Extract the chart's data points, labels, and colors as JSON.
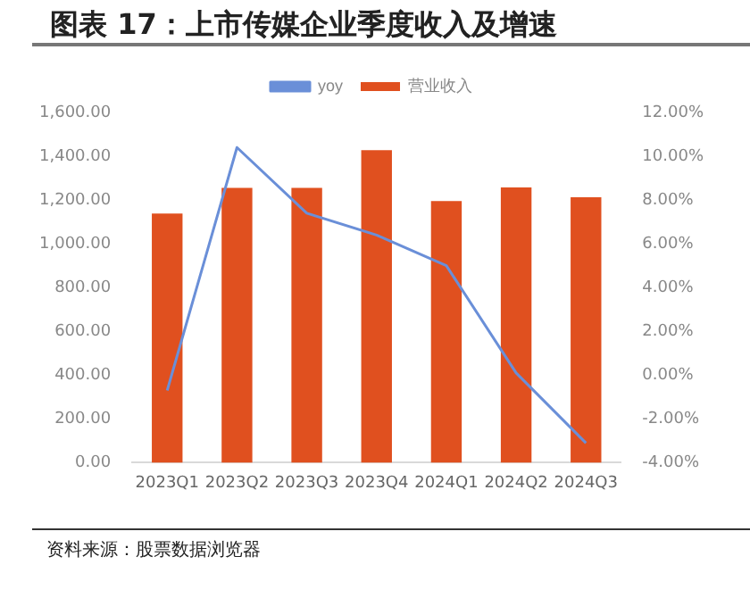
{
  "chart_data": {
    "type": "bar",
    "title": "图表 17：上市传媒企业季度收入及增速",
    "categories": [
      "2023Q1",
      "2023Q2",
      "2023Q3",
      "2023Q4",
      "2024Q1",
      "2024Q2",
      "2024Q3"
    ],
    "series": [
      {
        "name": "营业收入",
        "color": "#e0501f",
        "values": [
          1138,
          1255,
          1255,
          1428,
          1195,
          1258,
          1213
        ]
      },
      {
        "name": "yoy",
        "type": "line",
        "axis": "y2",
        "color": "#6a8fd8",
        "values": [
          -0.7,
          10.4,
          7.4,
          6.4,
          5.0,
          0.1,
          -3.1
        ]
      }
    ],
    "ylim": [
      0,
      1600
    ],
    "yticks": [
      {
        "value": 0,
        "label": "0.00"
      },
      {
        "value": 200,
        "label": "200.00"
      },
      {
        "value": 400,
        "label": "400.00"
      },
      {
        "value": 600,
        "label": "600.00"
      },
      {
        "value": 800,
        "label": "800.00"
      },
      {
        "value": 1000,
        "label": "1,000.00"
      },
      {
        "value": 1200,
        "label": "1,200.00"
      },
      {
        "value": 1400,
        "label": "1,400.00"
      },
      {
        "value": 1600,
        "label": "1,600.00"
      }
    ],
    "y2lim": [
      -4,
      12
    ],
    "y2ticks": [
      {
        "value": -4,
        "label": "-4.00%"
      },
      {
        "value": -2,
        "label": "-2.00%"
      },
      {
        "value": 0,
        "label": "0.00%"
      },
      {
        "value": 2,
        "label": "2.00%"
      },
      {
        "value": 4,
        "label": "4.00%"
      },
      {
        "value": 6,
        "label": "6.00%"
      },
      {
        "value": 8,
        "label": "8.00%"
      },
      {
        "value": 10,
        "label": "10.00%"
      },
      {
        "value": 12,
        "label": "12.00%"
      }
    ],
    "grid": false,
    "legend": "top",
    "marker": "none",
    "line_style": "solid",
    "annotations": [
      "资料来源：股票数据浏览器"
    ]
  }
}
